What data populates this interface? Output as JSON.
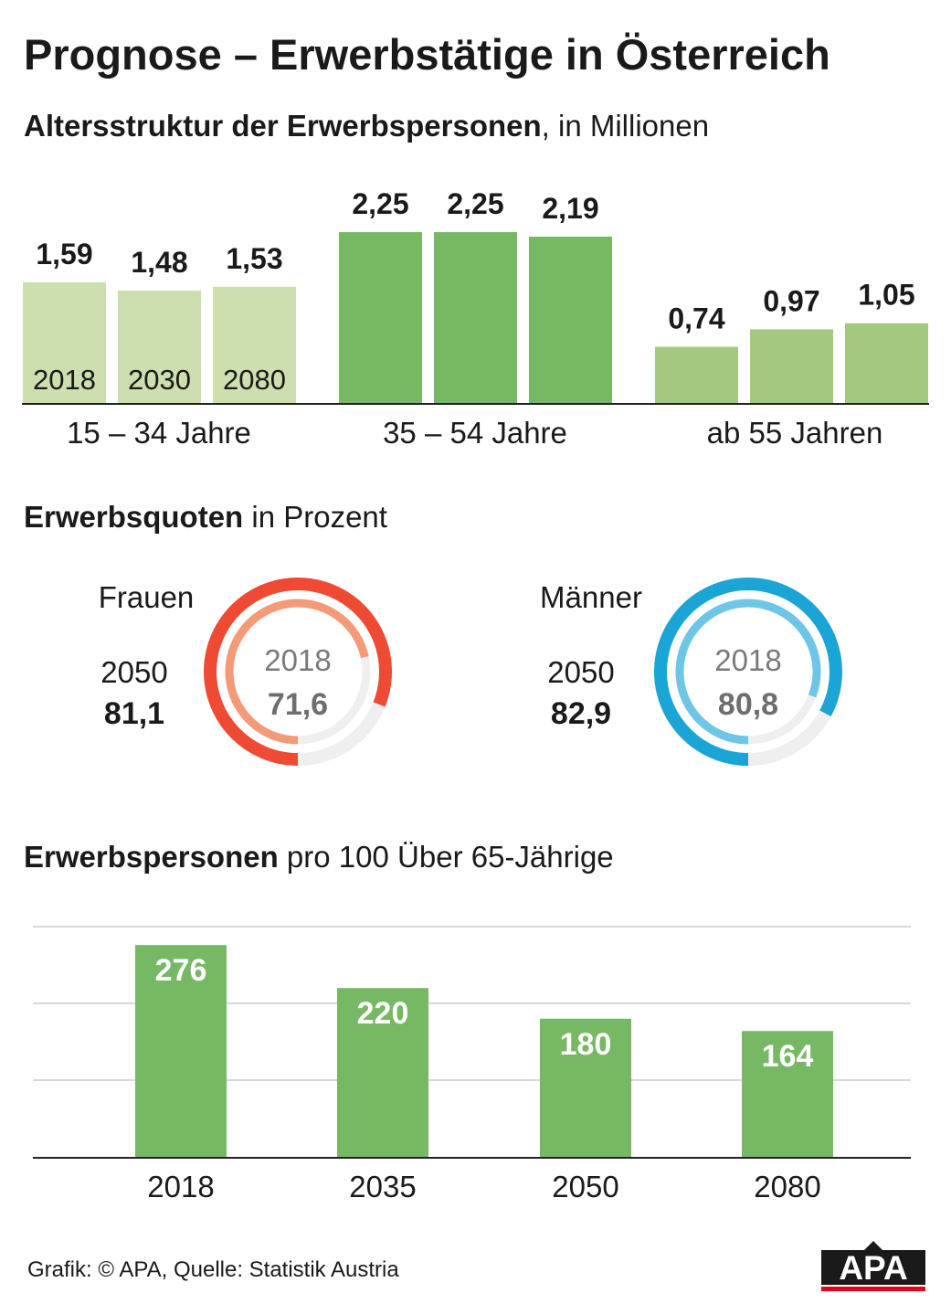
{
  "title": "Prognose – Erwerbstätige in Österreich",
  "section1": {
    "title_bold": "Altersstruktur der Erwerbspersonen",
    "title_rest": ", in Millionen"
  },
  "section2": {
    "title_bold": "Erwerbsquoten",
    "title_rest": " in Prozent"
  },
  "section3": {
    "title_bold": "Erwerbspersonen",
    "title_rest": " pro 100 Über 65-Jährige"
  },
  "colors": {
    "light_green": "#cddfae",
    "mid_green": "#a3c880",
    "green": "#77b865",
    "frauen_outer": "#ef4a33",
    "frauen_inner": "#f59a78",
    "maenner_outer": "#1aa5d6",
    "maenner_inner": "#6ec6e6",
    "track": "#efefef"
  },
  "chart_data": [
    {
      "type": "bar",
      "title": "Altersstruktur der Erwerbspersonen, in Millionen",
      "unit": "Millionen",
      "categories": [
        "15 – 34 Jahre",
        "35 – 54 Jahre",
        "ab 55 Jahren"
      ],
      "years": [
        "2018",
        "2030",
        "2080"
      ],
      "groups": [
        {
          "name": "15 – 34 Jahre",
          "values": [
            1.59,
            1.48,
            1.53
          ],
          "labels": [
            "1,59",
            "1,48",
            "1,53"
          ]
        },
        {
          "name": "35 – 54 Jahre",
          "values": [
            2.25,
            2.25,
            2.19
          ],
          "labels": [
            "2,25",
            "2,25",
            "2,19"
          ]
        },
        {
          "name": "ab 55 Jahren",
          "values": [
            0.74,
            0.97,
            1.05
          ],
          "labels": [
            "0,74",
            "0,97",
            "1,05"
          ]
        }
      ],
      "ylim": [
        0,
        2.25
      ]
    },
    {
      "type": "donut",
      "title": "Erwerbsquoten in Prozent",
      "items": [
        {
          "name": "Frauen",
          "year_2018": "2018",
          "value_2018": 71.6,
          "label_2018": "71,6",
          "year_2050": "2050",
          "value_2050": 81.1,
          "label_2050": "81,1"
        },
        {
          "name": "Männer",
          "year_2018": "2018",
          "value_2018": 80.8,
          "label_2018": "80,8",
          "year_2050": "2050",
          "value_2050": 82.9,
          "label_2050": "82,9"
        }
      ]
    },
    {
      "type": "bar",
      "title": "Erwerbspersonen pro 100 Über 65-Jährige",
      "categories": [
        "2018",
        "2035",
        "2050",
        "2080"
      ],
      "values": [
        276,
        220,
        180,
        164
      ],
      "labels": [
        "276",
        "220",
        "180",
        "164"
      ],
      "ylim": [
        0,
        300
      ]
    }
  ],
  "footer": "Grafik: © APA, Quelle: Statistik Austria",
  "logo_text": "APA"
}
